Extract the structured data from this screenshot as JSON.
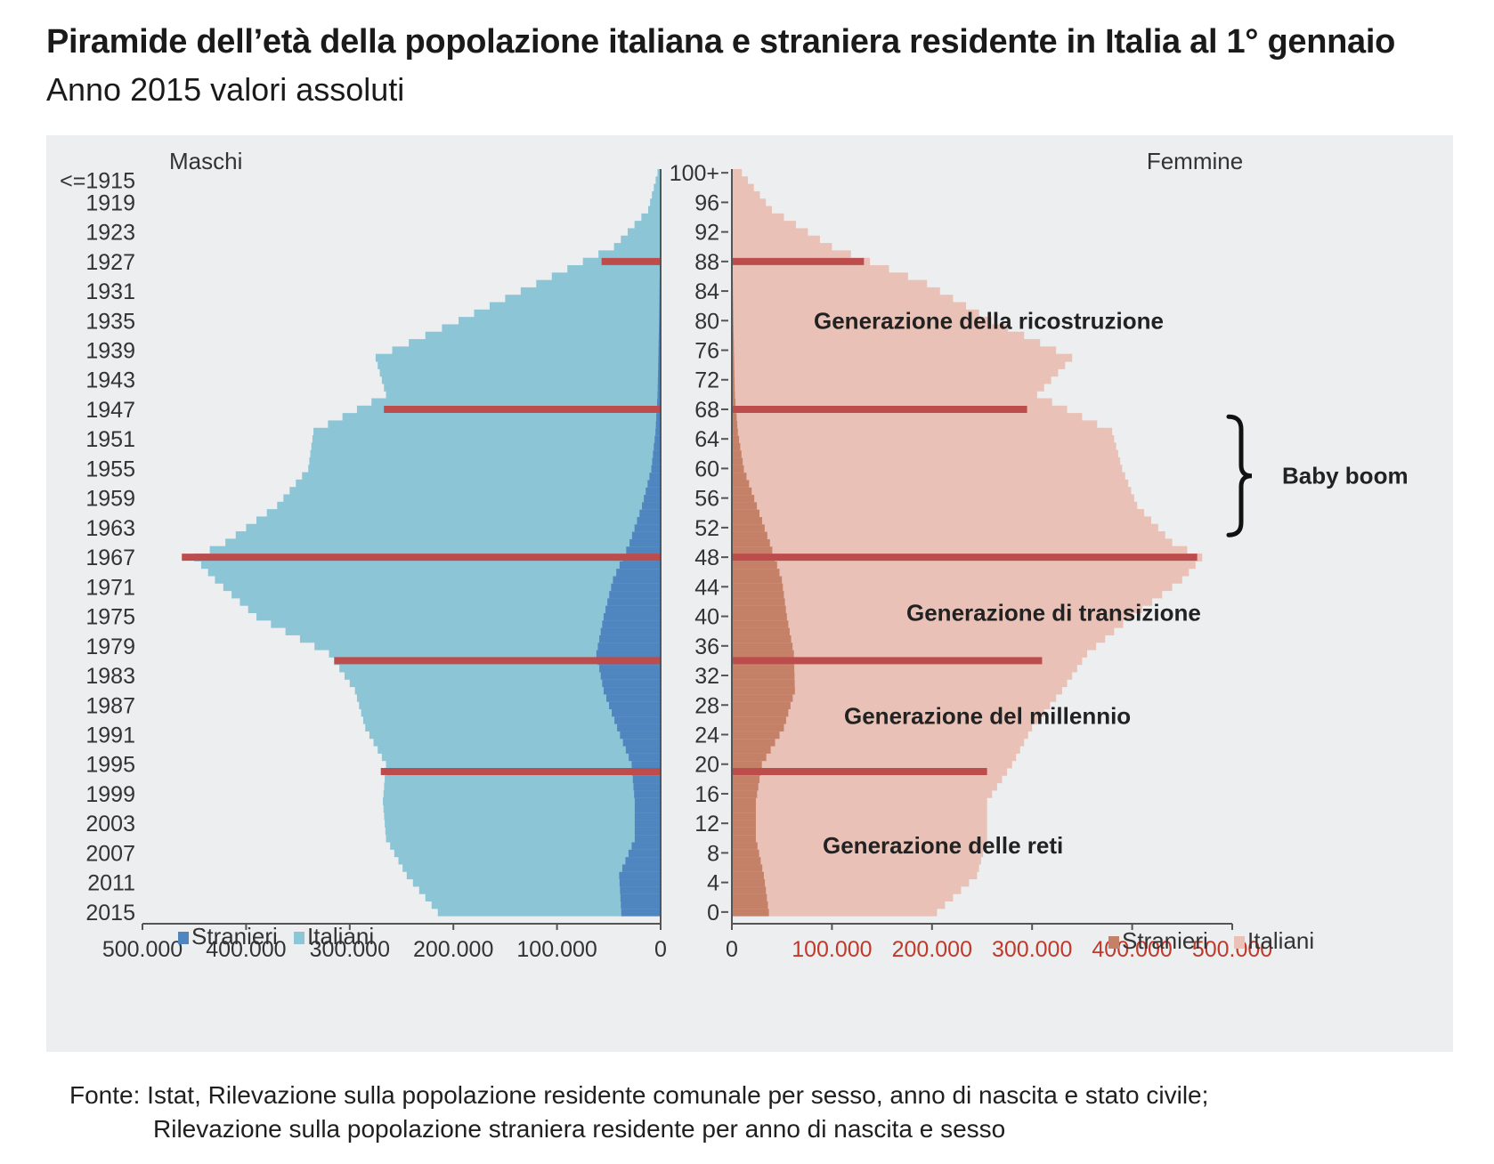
{
  "title": "Piramide dell’età della popolazione italiana e straniera residente in Italia al 1° gennaio",
  "subtitle": "Anno 2015 valori assoluti",
  "source": {
    "line1": "Fonte: Istat, Rilevazione sulla popolazione residente comunale per sesso, anno di nascita e stato civile;",
    "line2": "Rilevazione sulla popolazione straniera residente per anno di nascita e sesso"
  },
  "colors": {
    "italiani_m": "#8cc5d6",
    "stranieri_m": "#4f86c0",
    "italiani_f": "#e9c1b6",
    "stranieri_f": "#c58068",
    "generation_line": "#bd4d4d",
    "panel": "#eceeef",
    "axis_red_labels": "#c0392b"
  },
  "chart_data": {
    "type": "population-pyramid",
    "left_header": "Maschi",
    "right_header": "Femmine",
    "legend_left": {
      "stranieri": "Stranieri",
      "italiani": "Italiani"
    },
    "legend_right": {
      "stranieri": "Stranieri",
      "italiani": "Italiani"
    },
    "birth_year_labels": [
      "<=1915",
      "1919",
      "1923",
      "1927",
      "1931",
      "1935",
      "1939",
      "1943",
      "1947",
      "1951",
      "1955",
      "1959",
      "1963",
      "1967",
      "1971",
      "1975",
      "1979",
      "1983",
      "1987",
      "1991",
      "1995",
      "1999",
      "2003",
      "2007",
      "2011",
      "2015"
    ],
    "age_labels": [
      "100+",
      "96",
      "92",
      "88",
      "84",
      "80",
      "76",
      "72",
      "68",
      "64",
      "60",
      "56",
      "52",
      "48",
      "44",
      "40",
      "36",
      "32",
      "28",
      "24",
      "20",
      "16",
      "12",
      "8",
      "4",
      "0"
    ],
    "x_labels_left": [
      "500.000",
      "400.000",
      "300.000",
      "200.000",
      "100.000",
      "0"
    ],
    "x_labels_right": [
      "0",
      "100.000",
      "200.000",
      "300.000",
      "400.000",
      "500.000"
    ],
    "xlim": [
      0,
      500000
    ],
    "age_range": [
      0,
      100
    ],
    "annotations": [
      {
        "text": "Generazione della ricostruzione",
        "age": 80
      },
      {
        "text": "Generazione di transizione",
        "age": 40.5
      },
      {
        "text": "Generazione del millennio",
        "age": 26.5
      },
      {
        "text": "Generazione delle reti",
        "age": 9
      }
    ],
    "baby_boom": {
      "text": "Baby boom",
      "age_from": 51,
      "age_to": 67
    },
    "generation_lines": [
      {
        "age": 88,
        "male": 57000,
        "female": 132000
      },
      {
        "age": 68,
        "male": 267000,
        "female": 295000
      },
      {
        "age": 48,
        "male": 462000,
        "female": 465000
      },
      {
        "age": 34,
        "male": 315000,
        "female": 310000
      },
      {
        "age": 19,
        "male": 270000,
        "female": 255000
      }
    ],
    "series": [
      {
        "name": "Italiani",
        "sex": "Maschi",
        "ages": [
          0,
          5,
          10,
          15,
          20,
          25,
          30,
          35,
          40,
          45,
          48,
          50,
          55,
          60,
          65,
          70,
          75,
          80,
          85,
          90,
          95,
          100
        ],
        "values": [
          215000,
          245000,
          265000,
          268000,
          265000,
          285000,
          295000,
          320000,
          390000,
          430000,
          450000,
          420000,
          370000,
          340000,
          335000,
          265000,
          275000,
          195000,
          120000,
          45000,
          12000,
          3000
        ]
      },
      {
        "name": "Stranieri",
        "sex": "Maschi",
        "ages": [
          0,
          5,
          10,
          15,
          20,
          25,
          30,
          35,
          40,
          45,
          50,
          55,
          60,
          65,
          70,
          80,
          90,
          100
        ],
        "values": [
          38000,
          40000,
          25000,
          25000,
          28000,
          42000,
          55000,
          62000,
          55000,
          46000,
          30000,
          18000,
          9000,
          5000,
          3000,
          1500,
          500,
          0
        ]
      },
      {
        "name": "Italiani",
        "sex": "Femmine",
        "ages": [
          0,
          5,
          10,
          15,
          20,
          25,
          30,
          35,
          40,
          45,
          48,
          50,
          55,
          60,
          65,
          70,
          75,
          80,
          85,
          90,
          95,
          100
        ],
        "values": [
          205000,
          245000,
          255000,
          255000,
          280000,
          300000,
          330000,
          355000,
          400000,
          450000,
          470000,
          440000,
          405000,
          390000,
          380000,
          305000,
          340000,
          260000,
          195000,
          100000,
          40000,
          10000
        ]
      },
      {
        "name": "Stranieri",
        "sex": "Femmine",
        "ages": [
          0,
          5,
          10,
          15,
          20,
          25,
          30,
          35,
          40,
          45,
          50,
          55,
          60,
          65,
          70,
          80,
          90,
          100
        ],
        "values": [
          37000,
          32000,
          24000,
          24000,
          30000,
          52000,
          63000,
          62000,
          55000,
          50000,
          38000,
          25000,
          12000,
          6000,
          3000,
          1500,
          500,
          0
        ]
      }
    ]
  }
}
